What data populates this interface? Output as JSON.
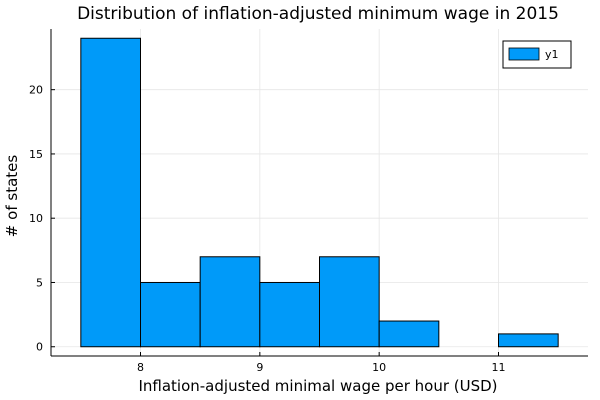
{
  "chart_data": {
    "type": "bar",
    "title": "Distribution of inflation-adjusted minimum wage in 2015",
    "xlabel": "Inflation-adjusted minimal wage per hour (USD)",
    "ylabel": "# of states",
    "bins": [
      {
        "start": 7.5,
        "end": 8.0,
        "count": 24
      },
      {
        "start": 8.0,
        "end": 8.5,
        "count": 5
      },
      {
        "start": 8.5,
        "end": 9.0,
        "count": 7
      },
      {
        "start": 9.0,
        "end": 9.5,
        "count": 5
      },
      {
        "start": 9.5,
        "end": 10.0,
        "count": 7
      },
      {
        "start": 10.0,
        "end": 10.5,
        "count": 2
      },
      {
        "start": 10.5,
        "end": 11.0,
        "count": 0
      },
      {
        "start": 11.0,
        "end": 11.5,
        "count": 1
      }
    ],
    "xlim": [
      7.25,
      11.75
    ],
    "ylim": [
      -0.72,
      24.72
    ],
    "x_ticks": [
      8,
      9,
      10,
      11
    ],
    "y_ticks": [
      0,
      5,
      10,
      15,
      20
    ],
    "grid": true,
    "legend": {
      "position": "top-right",
      "entries": [
        "y1"
      ]
    },
    "colors": {
      "bar_fill": "#009af9",
      "bar_stroke": "#000000",
      "grid": "#e6e6e6",
      "axis": "#000000"
    }
  }
}
